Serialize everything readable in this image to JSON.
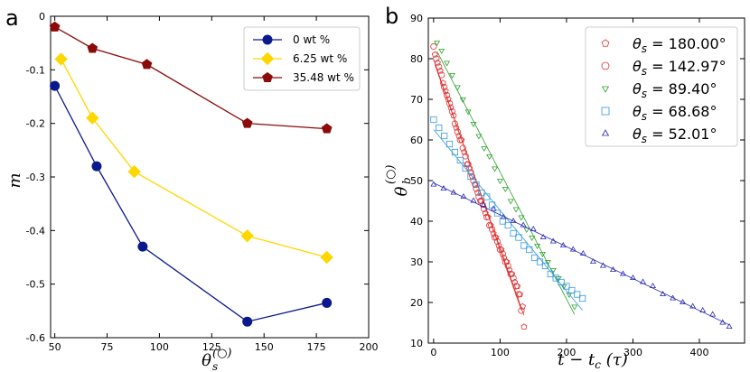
{
  "panels": {
    "a": {
      "label": "a"
    },
    "b": {
      "label": "b"
    }
  },
  "chart_data": [
    {
      "panel": "a",
      "type": "line",
      "title": "",
      "xlabel": "θs(○)",
      "ylabel": "m",
      "xlim": [
        48,
        200
      ],
      "ylim": [
        -0.6,
        0.0
      ],
      "xticks": [
        50,
        75,
        100,
        125,
        150,
        175,
        200
      ],
      "yticks": [
        0,
        -0.1,
        -0.2,
        -0.3,
        -0.4,
        -0.5,
        -0.6
      ],
      "xtick_labels": [
        "50",
        "75",
        "100",
        "125",
        "150",
        "175",
        "200"
      ],
      "ytick_labels": [
        "0",
        "-0.1",
        "-0.2",
        "-0.3",
        "-0.4",
        "-0.5",
        "-0.6"
      ],
      "legend_position": "top-right",
      "series": [
        {
          "name": "0 wt %",
          "color": "#0a1a8c",
          "marker": "circle",
          "x": [
            50,
            70,
            92,
            142,
            180
          ],
          "y": [
            -0.13,
            -0.28,
            -0.43,
            -0.57,
            -0.535
          ]
        },
        {
          "name": "6.25 wt %",
          "color": "#ffd700",
          "marker": "diamond",
          "x": [
            53,
            68,
            88,
            142,
            180
          ],
          "y": [
            -0.08,
            -0.19,
            -0.29,
            -0.41,
            -0.45
          ]
        },
        {
          "name": "35.48 wt %",
          "color": "#8b0a0a",
          "marker": "pentagon",
          "x": [
            50,
            68,
            94,
            142,
            180
          ],
          "y": [
            -0.02,
            -0.06,
            -0.09,
            -0.2,
            -0.21
          ]
        }
      ]
    },
    {
      "panel": "b",
      "type": "scatter",
      "title": "",
      "xlabel": "t − tc (τ)",
      "ylabel": "θb(○)",
      "xlim": [
        -8,
        468
      ],
      "ylim": [
        10,
        90
      ],
      "xticks": [
        0,
        100,
        200,
        300,
        400
      ],
      "yticks": [
        10,
        20,
        30,
        40,
        50,
        60,
        70,
        80,
        90
      ],
      "xtick_labels": [
        "0",
        "100",
        "200",
        "300",
        "400"
      ],
      "ytick_labels": [
        "10",
        "20",
        "30",
        "40",
        "50",
        "60",
        "70",
        "80",
        "90"
      ],
      "legend_position": "top-right",
      "series": [
        {
          "name": "θs = 180.00°",
          "label_symbol": "θ",
          "label_sub": "s",
          "label_rest": " = 180.00°",
          "color": "#e03030",
          "marker": "pentagon-open",
          "x": [
            2,
            6,
            10,
            14,
            18,
            22,
            26,
            30,
            34,
            38,
            42,
            46,
            50,
            54,
            58,
            62,
            66,
            70,
            74,
            78,
            82,
            86,
            90,
            94,
            98,
            102,
            106,
            110,
            114,
            118,
            122,
            126,
            130,
            134,
            136
          ],
          "y": [
            81,
            79,
            77,
            74,
            72,
            70,
            68,
            66,
            63,
            61,
            60,
            57,
            54,
            53,
            51,
            49,
            47,
            45,
            44,
            42,
            41,
            39,
            37,
            36,
            34,
            33,
            31,
            30,
            28,
            27,
            25,
            24,
            22,
            19,
            14
          ]
        },
        {
          "name": "θs = 142.97°",
          "label_symbol": "θ",
          "label_sub": "s",
          "label_rest": " = 142.97°",
          "color": "#e03030",
          "marker": "circle-open",
          "x": [
            0,
            4,
            8,
            12,
            16,
            20,
            24,
            28,
            32,
            36,
            40,
            44,
            48,
            52,
            56,
            60,
            64,
            68,
            72,
            76,
            80,
            84,
            88,
            92,
            96,
            100,
            104,
            108,
            112,
            116,
            120,
            124,
            128,
            132
          ],
          "y": [
            83,
            80,
            78,
            76,
            73,
            71,
            69,
            67,
            64,
            62,
            60,
            58,
            56,
            54,
            52,
            50,
            48,
            46,
            45,
            43,
            41,
            39,
            38,
            36,
            35,
            33,
            32,
            30,
            29,
            27,
            26,
            24,
            22,
            18
          ]
        },
        {
          "name": "θs = 89.40°",
          "label_symbol": "θ",
          "label_sub": "s",
          "label_rest": " = 89.40°",
          "color": "#2ca02c",
          "marker": "triangle-down-open",
          "x": [
            5,
            12,
            20,
            28,
            36,
            44,
            52,
            60,
            68,
            76,
            84,
            92,
            100,
            108,
            116,
            124,
            132,
            140,
            148,
            156,
            164,
            172,
            180,
            188,
            196,
            204,
            212
          ],
          "y": [
            84,
            82,
            79,
            76,
            73,
            70,
            67,
            64,
            61,
            58,
            56,
            53,
            50,
            48,
            45,
            43,
            41,
            38,
            36,
            34,
            32,
            30,
            28,
            26,
            24,
            22,
            19
          ]
        },
        {
          "name": "θs = 68.68°",
          "label_symbol": "θ",
          "label_sub": "s",
          "label_rest": " = 68.68°",
          "color": "#3399dd",
          "marker": "square-open",
          "x": [
            0,
            8,
            16,
            24,
            32,
            40,
            48,
            56,
            64,
            72,
            80,
            88,
            96,
            104,
            112,
            120,
            128,
            136,
            144,
            152,
            160,
            168,
            176,
            184,
            192,
            200,
            208,
            216,
            224
          ],
          "y": [
            65,
            63,
            61,
            59,
            57,
            55,
            53,
            51,
            49,
            47,
            46,
            44,
            42,
            40,
            39,
            37,
            36,
            34,
            33,
            31,
            30,
            29,
            27,
            26,
            25,
            24,
            23,
            22,
            21
          ]
        },
        {
          "name": "θs = 52.01°",
          "label_symbol": "θ",
          "label_sub": "s",
          "label_rest": " = 52.01°",
          "color": "#2828b4",
          "marker": "triangle-up-open",
          "x": [
            0,
            15,
            30,
            45,
            60,
            75,
            90,
            105,
            120,
            135,
            150,
            165,
            180,
            195,
            210,
            225,
            240,
            255,
            270,
            285,
            300,
            315,
            330,
            345,
            360,
            375,
            390,
            405,
            420,
            435,
            445
          ],
          "y": [
            49,
            48,
            47,
            46,
            45,
            44,
            43,
            41,
            40,
            39,
            38,
            36,
            35,
            34,
            33,
            32,
            30,
            29,
            28,
            27,
            26,
            25,
            24,
            22,
            21,
            20,
            19,
            18,
            17,
            15,
            14
          ]
        }
      ]
    }
  ]
}
